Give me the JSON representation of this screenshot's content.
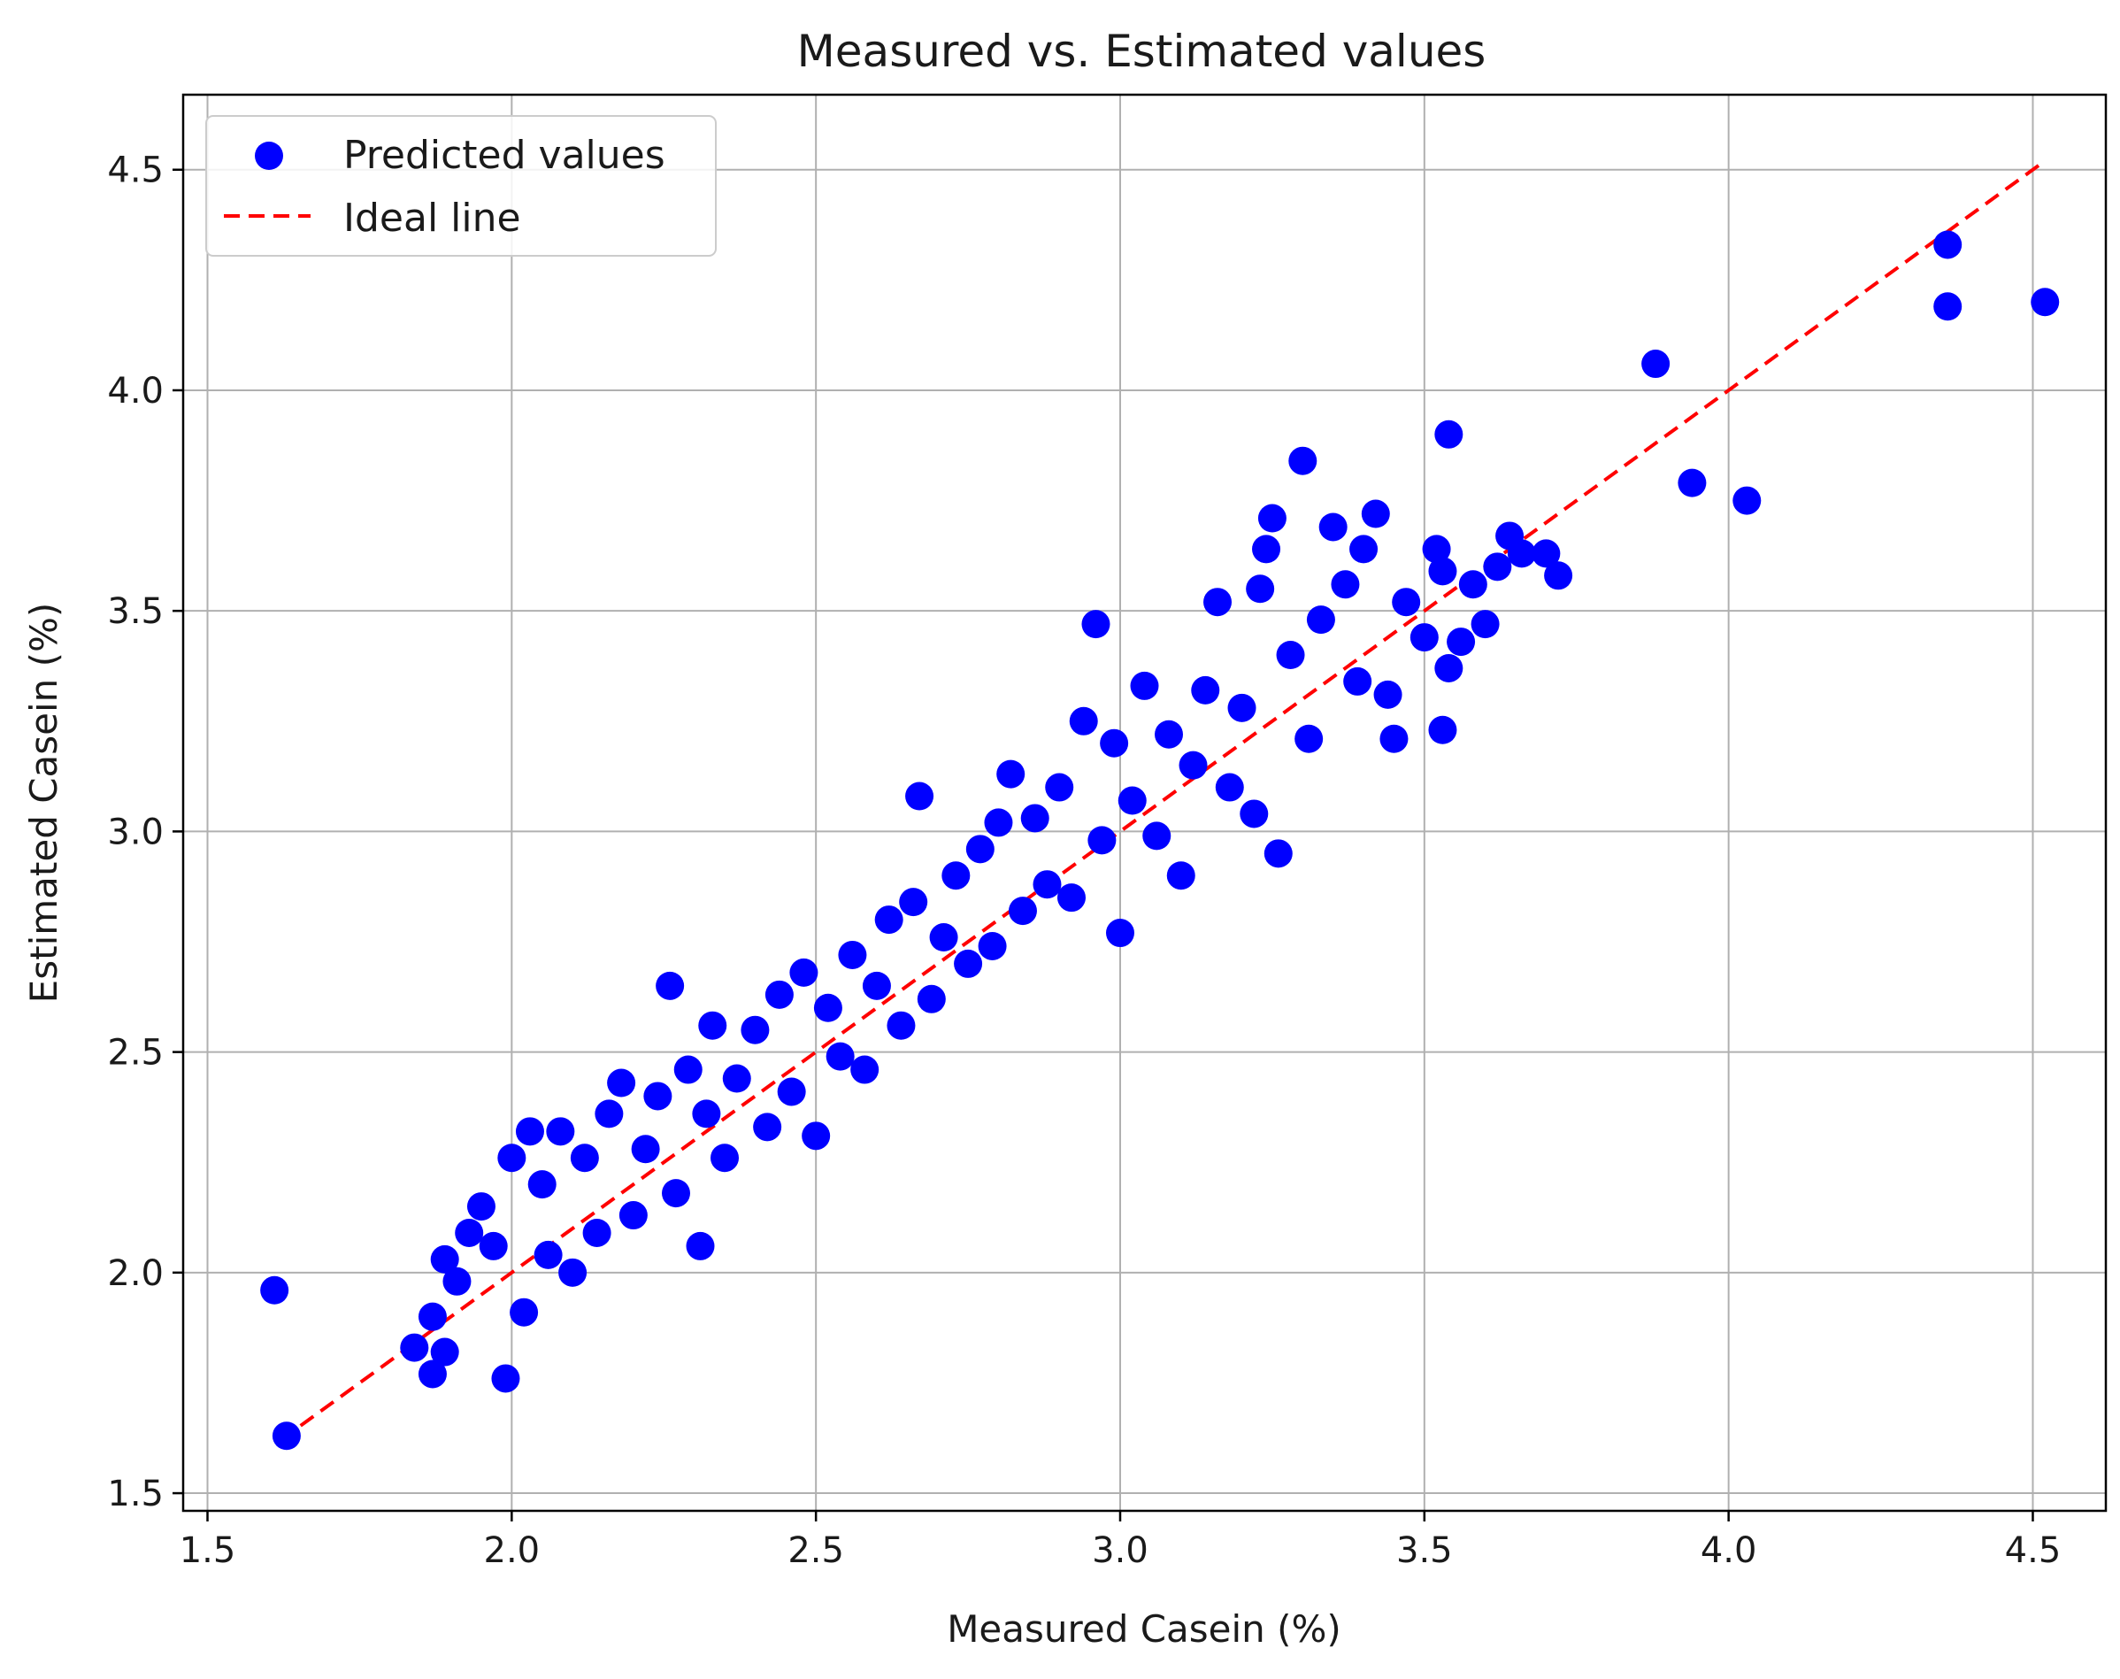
{
  "chart_data": {
    "type": "scatter",
    "title": "Measured vs. Estimated values",
    "xlabel": "Measured Casein (%)",
    "ylabel": "Estimated Casein (%)",
    "xlim": [
      1.46,
      4.62
    ],
    "ylim": [
      1.46,
      4.67
    ],
    "xticks": [
      1.5,
      2.0,
      2.5,
      3.0,
      3.5,
      4.0,
      4.5
    ],
    "xtick_labels": [
      "1.5",
      "2.0",
      "2.5",
      "3.0",
      "3.5",
      "4.0",
      "4.5"
    ],
    "yticks": [
      1.5,
      2.0,
      2.5,
      3.0,
      3.5,
      4.0,
      4.5
    ],
    "ytick_labels": [
      "1.5",
      "2.0",
      "2.5",
      "3.0",
      "3.5",
      "4.0",
      "4.5"
    ],
    "grid": true,
    "legend_position": "top-left",
    "series": [
      {
        "name": "Predicted values",
        "kind": "scatter",
        "color": "#0000ff",
        "points": [
          [
            1.61,
            1.96
          ],
          [
            1.63,
            1.63
          ],
          [
            1.84,
            1.83
          ],
          [
            1.87,
            1.77
          ],
          [
            1.87,
            1.9
          ],
          [
            1.89,
            1.82
          ],
          [
            1.89,
            2.03
          ],
          [
            1.91,
            1.98
          ],
          [
            1.93,
            2.09
          ],
          [
            1.95,
            2.15
          ],
          [
            1.97,
            2.06
          ],
          [
            1.99,
            1.76
          ],
          [
            2.0,
            2.26
          ],
          [
            2.02,
            1.91
          ],
          [
            2.03,
            2.32
          ],
          [
            2.05,
            2.2
          ],
          [
            2.06,
            2.04
          ],
          [
            2.08,
            2.32
          ],
          [
            2.1,
            2.0
          ],
          [
            2.12,
            2.26
          ],
          [
            2.14,
            2.09
          ],
          [
            2.16,
            2.36
          ],
          [
            2.18,
            2.43
          ],
          [
            2.2,
            2.13
          ],
          [
            2.22,
            2.28
          ],
          [
            2.24,
            2.4
          ],
          [
            2.26,
            2.65
          ],
          [
            2.27,
            2.18
          ],
          [
            2.29,
            2.46
          ],
          [
            2.31,
            2.06
          ],
          [
            2.32,
            2.36
          ],
          [
            2.33,
            2.56
          ],
          [
            2.35,
            2.26
          ],
          [
            2.37,
            2.44
          ],
          [
            2.4,
            2.55
          ],
          [
            2.42,
            2.33
          ],
          [
            2.44,
            2.63
          ],
          [
            2.46,
            2.41
          ],
          [
            2.48,
            2.68
          ],
          [
            2.5,
            2.31
          ],
          [
            2.52,
            2.6
          ],
          [
            2.54,
            2.49
          ],
          [
            2.56,
            2.72
          ],
          [
            2.58,
            2.46
          ],
          [
            2.6,
            2.65
          ],
          [
            2.62,
            2.8
          ],
          [
            2.64,
            2.56
          ],
          [
            2.66,
            2.84
          ],
          [
            2.67,
            3.08
          ],
          [
            2.69,
            2.62
          ],
          [
            2.71,
            2.76
          ],
          [
            2.73,
            2.9
          ],
          [
            2.75,
            2.7
          ],
          [
            2.77,
            2.96
          ],
          [
            2.79,
            2.74
          ],
          [
            2.8,
            3.02
          ],
          [
            2.82,
            3.13
          ],
          [
            2.84,
            2.82
          ],
          [
            2.86,
            3.03
          ],
          [
            2.88,
            2.88
          ],
          [
            2.9,
            3.1
          ],
          [
            2.92,
            2.85
          ],
          [
            2.94,
            3.25
          ],
          [
            2.96,
            3.47
          ],
          [
            2.97,
            2.98
          ],
          [
            2.99,
            3.2
          ],
          [
            3.0,
            2.77
          ],
          [
            3.02,
            3.07
          ],
          [
            3.04,
            3.33
          ],
          [
            3.06,
            2.99
          ],
          [
            3.08,
            3.22
          ],
          [
            3.1,
            2.9
          ],
          [
            3.12,
            3.15
          ],
          [
            3.14,
            3.32
          ],
          [
            3.16,
            3.52
          ],
          [
            3.18,
            3.1
          ],
          [
            3.2,
            3.28
          ],
          [
            3.22,
            3.04
          ],
          [
            3.23,
            3.55
          ],
          [
            3.24,
            3.64
          ],
          [
            3.25,
            3.71
          ],
          [
            3.26,
            2.95
          ],
          [
            3.28,
            3.4
          ],
          [
            3.3,
            3.84
          ],
          [
            3.31,
            3.21
          ],
          [
            3.33,
            3.48
          ],
          [
            3.35,
            3.69
          ],
          [
            3.37,
            3.56
          ],
          [
            3.39,
            3.34
          ],
          [
            3.4,
            3.64
          ],
          [
            3.42,
            3.72
          ],
          [
            3.44,
            3.31
          ],
          [
            3.45,
            3.21
          ],
          [
            3.47,
            3.52
          ],
          [
            3.5,
            3.44
          ],
          [
            3.52,
            3.64
          ],
          [
            3.53,
            3.23
          ],
          [
            3.53,
            3.59
          ],
          [
            3.54,
            3.37
          ],
          [
            3.54,
            3.9
          ],
          [
            3.56,
            3.43
          ],
          [
            3.58,
            3.56
          ],
          [
            3.6,
            3.47
          ],
          [
            3.62,
            3.6
          ],
          [
            3.64,
            3.67
          ],
          [
            3.66,
            3.63
          ],
          [
            3.7,
            3.63
          ],
          [
            3.72,
            3.58
          ],
          [
            3.88,
            4.06
          ],
          [
            3.94,
            3.79
          ],
          [
            4.03,
            3.75
          ],
          [
            4.36,
            4.19
          ],
          [
            4.36,
            4.33
          ],
          [
            4.52,
            4.2
          ]
        ]
      },
      {
        "name": "Ideal line",
        "kind": "line",
        "style": "dashed",
        "color": "#ff0000",
        "points": [
          [
            1.62,
            1.62
          ],
          [
            4.52,
            4.52
          ]
        ]
      }
    ]
  }
}
